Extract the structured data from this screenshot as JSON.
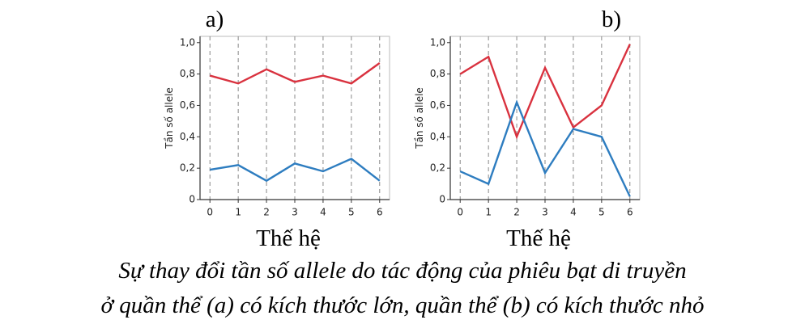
{
  "chart_data": [
    {
      "type": "line",
      "title": "a)",
      "xlabel": "Thế hệ",
      "ylabel": "Tần số allele",
      "x": [
        0,
        1,
        2,
        3,
        4,
        5,
        6
      ],
      "xlim": [
        -0.35,
        6.35
      ],
      "xticks": [
        0,
        1,
        2,
        3,
        4,
        5,
        6
      ],
      "ylim": [
        0,
        1.04
      ],
      "yticks": [
        0,
        {
          "value": 0.2,
          "label": "0,2"
        },
        {
          "value": 0.4,
          "label": "0,4"
        },
        {
          "value": 0.6,
          "label": "0,6"
        },
        {
          "value": 0.8,
          "label": "0,8"
        },
        {
          "value": 1.0,
          "label": "1,0"
        }
      ],
      "grid": true,
      "series": [
        {
          "color": "#d9323f",
          "values": [
            0.79,
            0.74,
            0.83,
            0.75,
            0.79,
            0.74,
            0.87
          ]
        },
        {
          "color": "#2e7dc0",
          "values": [
            0.19,
            0.22,
            0.12,
            0.23,
            0.18,
            0.26,
            0.12
          ]
        }
      ]
    },
    {
      "type": "line",
      "title": "b)",
      "xlabel": "Thế hệ",
      "ylabel": "Tần số allele",
      "x": [
        0,
        1,
        2,
        3,
        4,
        5,
        6
      ],
      "xlim": [
        -0.35,
        6.35
      ],
      "xticks": [
        0,
        1,
        2,
        3,
        4,
        5,
        6
      ],
      "ylim": [
        0,
        1.04
      ],
      "yticks": [
        0,
        {
          "value": 0.2,
          "label": "0,2"
        },
        {
          "value": 0.4,
          "label": "0,4"
        },
        {
          "value": 0.6,
          "label": "0,6"
        },
        {
          "value": 0.8,
          "label": "0,8"
        },
        {
          "value": 1.0,
          "label": "1,0"
        }
      ],
      "grid": true,
      "series": [
        {
          "color": "#d9323f",
          "values": [
            0.8,
            0.91,
            0.4,
            0.84,
            0.46,
            0.6,
            0.99
          ]
        },
        {
          "color": "#2e7dc0",
          "values": [
            0.18,
            0.1,
            0.62,
            0.17,
            0.45,
            0.4,
            0.02
          ]
        }
      ]
    }
  ],
  "caption": [
    "Sự thay đổi tần số allele do tác động của phiêu bạt di truyền",
    "ở quần thể (a) có kích thước lớn, quần thể (b) có kích thước nhỏ"
  ]
}
